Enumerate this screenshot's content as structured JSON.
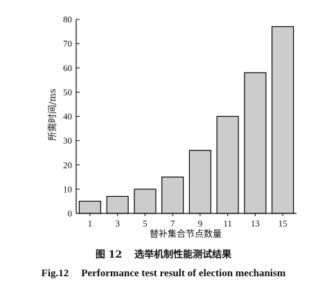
{
  "chart_data": {
    "type": "bar",
    "categories": [
      "1",
      "3",
      "5",
      "7",
      "9",
      "11",
      "13",
      "15"
    ],
    "values": [
      5,
      7,
      10,
      15,
      26,
      40,
      58,
      77
    ],
    "xlabel": "替补集合节点数量",
    "ylabel": "所需时间/ms",
    "ylim": [
      0,
      80
    ],
    "yticks": [
      0,
      10,
      20,
      30,
      40,
      50,
      60,
      70,
      80
    ],
    "bar_color": "#cccccc",
    "bar_edge_color": "#000000",
    "grid": false
  },
  "caption": {
    "cn_number": "图 12",
    "cn_title": "选举机制性能测试结果",
    "en_number": "Fig.12",
    "en_title": "Performance test result of election mechanism"
  }
}
